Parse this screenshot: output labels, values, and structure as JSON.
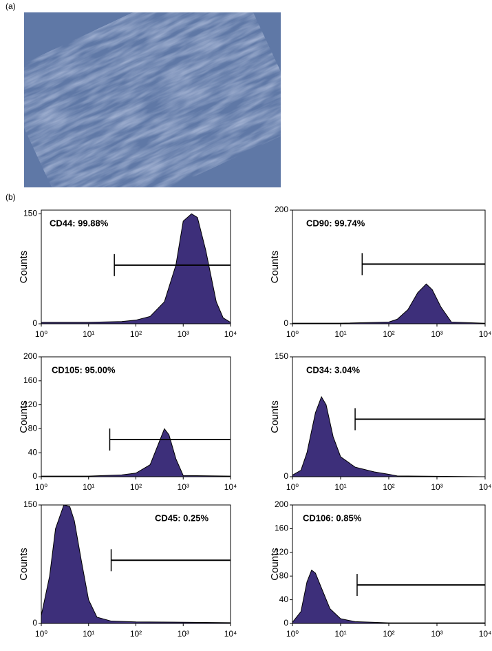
{
  "panel_labels": [
    "(a)",
    "(b)"
  ],
  "chart_data": [
    {
      "type": "area",
      "annotation": "CD44: 99.88%",
      "y_label": "Counts",
      "xscale": "log",
      "x": [
        1,
        10,
        50,
        100,
        200,
        400,
        700,
        1000,
        1500,
        2000,
        3000,
        5000,
        7000,
        10000
      ],
      "values": [
        2,
        2,
        3,
        5,
        10,
        30,
        80,
        140,
        150,
        145,
        100,
        30,
        8,
        2
      ],
      "color": "#3d2f7a",
      "gate": {
        "x": [
          35,
          10000
        ],
        "y": 80
      },
      "xlim": [
        1,
        10000
      ],
      "xticks": [
        {
          "value": 1,
          "label": "10⁰"
        },
        {
          "value": 10,
          "label": "10¹"
        },
        {
          "value": 100,
          "label": "10²"
        },
        {
          "value": 1000,
          "label": "10³"
        },
        {
          "value": 10000,
          "label": "10⁴"
        }
      ],
      "ylim": [
        0,
        155
      ],
      "yticks": [
        0,
        150
      ]
    },
    {
      "type": "area",
      "annotation": "CD90: 99.74%",
      "y_label": "Counts",
      "xscale": "log",
      "x": [
        1,
        10,
        100,
        150,
        250,
        400,
        600,
        800,
        1200,
        2000,
        10000
      ],
      "values": [
        1,
        1,
        3,
        8,
        25,
        55,
        70,
        60,
        30,
        3,
        1
      ],
      "color": "#3d2f7a",
      "gate": {
        "x": [
          28,
          10000
        ],
        "y": 105
      },
      "xlim": [
        1,
        10000
      ],
      "xticks": [
        {
          "value": 1,
          "label": "10⁰"
        },
        {
          "value": 10,
          "label": "10¹"
        },
        {
          "value": 100,
          "label": "10²"
        },
        {
          "value": 1000,
          "label": "10³"
        },
        {
          "value": 10000,
          "label": "10⁴"
        }
      ],
      "ylim": [
        0,
        200
      ],
      "yticks": [
        0,
        200
      ]
    },
    {
      "type": "area",
      "annotation": "CD105: 95.00%",
      "y_label": "Counts",
      "xscale": "log",
      "x": [
        1,
        10,
        50,
        100,
        200,
        300,
        400,
        500,
        700,
        1000,
        10000
      ],
      "values": [
        1,
        1,
        3,
        6,
        20,
        55,
        80,
        70,
        30,
        2,
        1
      ],
      "color": "#3d2f7a",
      "gate": {
        "x": [
          28,
          10000
        ],
        "y": 62
      },
      "xlim": [
        1,
        10000
      ],
      "xticks": [
        {
          "value": 1,
          "label": "10⁰"
        },
        {
          "value": 10,
          "label": "10¹"
        },
        {
          "value": 100,
          "label": "10²"
        },
        {
          "value": 1000,
          "label": "10³"
        },
        {
          "value": 10000,
          "label": "10⁴"
        }
      ],
      "ylim": [
        0,
        200
      ],
      "yticks": [
        0,
        40,
        80,
        120,
        160,
        200
      ]
    },
    {
      "type": "area",
      "annotation": "CD34: 3.04%",
      "y_label": "Counts",
      "xscale": "log",
      "x": [
        1,
        1.5,
        2,
        3,
        4,
        5,
        7,
        10,
        20,
        50,
        100,
        150,
        10000
      ],
      "values": [
        2,
        8,
        30,
        80,
        100,
        90,
        50,
        25,
        12,
        6,
        3,
        1,
        0
      ],
      "color": "#3d2f7a",
      "gate": {
        "x": [
          20,
          10000
        ],
        "y": 72
      },
      "xlim": [
        1,
        10000
      ],
      "xticks": [
        {
          "value": 1,
          "label": "10⁰"
        },
        {
          "value": 10,
          "label": "10¹"
        },
        {
          "value": 100,
          "label": "10²"
        },
        {
          "value": 1000,
          "label": "10³"
        },
        {
          "value": 10000,
          "label": "10⁴"
        }
      ],
      "ylim": [
        0,
        150
      ],
      "yticks": [
        0,
        150
      ]
    },
    {
      "type": "area",
      "annotation": "CD45: 0.25%",
      "y_label": "Counts",
      "xscale": "log",
      "x": [
        1,
        1.5,
        2,
        3,
        4,
        5,
        7,
        10,
        15,
        30,
        100,
        10000
      ],
      "values": [
        10,
        60,
        120,
        150,
        148,
        130,
        80,
        30,
        8,
        3,
        2,
        1
      ],
      "color": "#3d2f7a",
      "gate": {
        "x": [
          30,
          10000
        ],
        "y": 80
      },
      "xlim": [
        1,
        10000
      ],
      "xticks": [
        {
          "value": 1,
          "label": "10⁰"
        },
        {
          "value": 10,
          "label": "10¹"
        },
        {
          "value": 100,
          "label": "10²"
        },
        {
          "value": 1000,
          "label": "10³"
        },
        {
          "value": 10000,
          "label": "10⁴"
        }
      ],
      "ylim": [
        0,
        150
      ],
      "yticks": [
        0,
        150
      ]
    },
    {
      "type": "area",
      "annotation": "CD106: 0.85%",
      "y_label": "Counts",
      "xscale": "log",
      "x": [
        1,
        1.5,
        2,
        2.5,
        3,
        4,
        6,
        10,
        20,
        100,
        10000
      ],
      "values": [
        2,
        20,
        70,
        90,
        85,
        60,
        25,
        8,
        3,
        1,
        1
      ],
      "color": "#3d2f7a",
      "gate": {
        "x": [
          22,
          10000
        ],
        "y": 65
      },
      "xlim": [
        1,
        10000
      ],
      "xticks": [
        {
          "value": 1,
          "label": "10⁰"
        },
        {
          "value": 10,
          "label": "10¹"
        },
        {
          "value": 100,
          "label": "10²"
        },
        {
          "value": 1000,
          "label": "10³"
        },
        {
          "value": 10000,
          "label": "10⁴"
        }
      ],
      "ylim": [
        0,
        200
      ],
      "yticks": [
        0,
        40,
        80,
        120,
        160,
        200
      ]
    }
  ]
}
